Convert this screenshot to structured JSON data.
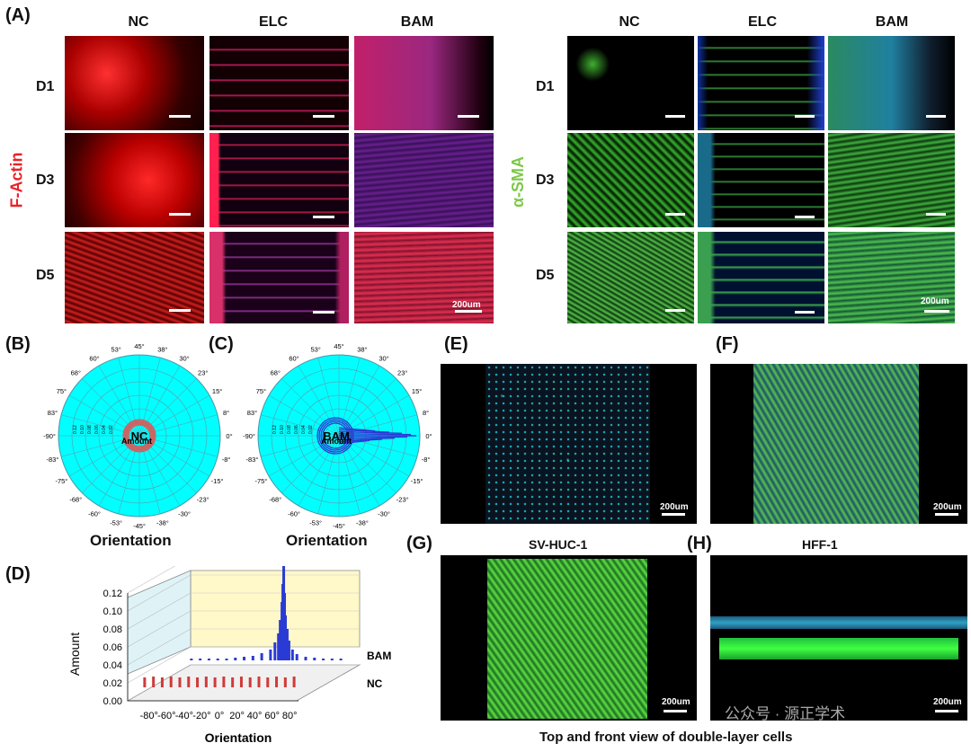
{
  "figure_panels": {
    "a": "(A)",
    "b": "(B)",
    "c": "(C)",
    "d": "(D)",
    "e": "(E)",
    "f": "(F)",
    "g": "(G)",
    "h": "(H)"
  },
  "panel_a": {
    "columns": [
      "NC",
      "ELC",
      "BAM"
    ],
    "rows": [
      "D1",
      "D3",
      "D5"
    ],
    "left_stain": "F-Actin",
    "right_stain": "α-SMA",
    "scale_label": "200um",
    "colors": {
      "f_actin": "#e8232a",
      "sma": "#7ec84a",
      "nucleus": "#2b3cd0"
    }
  },
  "polar_b": {
    "center_label": "NC",
    "amount_label": "Amount",
    "caption": "Orientation",
    "radial_ticks": [
      "0.12",
      "0.10",
      "0.08",
      "0.06",
      "0.04",
      "0.02"
    ],
    "angle_labels": [
      "45°",
      "38°",
      "30°",
      "23°",
      "15°",
      "8°",
      "0°",
      "-8°",
      "-15°",
      "-23°",
      "-30°",
      "-38°",
      "-45°",
      "-53°",
      "-60°",
      "-68°",
      "-75°",
      "-83°",
      "-90°",
      "83°",
      "75°",
      "68°",
      "60°",
      "53°"
    ],
    "colors": {
      "fill": "#00ffff",
      "data": "#d06060"
    }
  },
  "polar_c": {
    "center_label": "BAM",
    "amount_label": "Amount",
    "caption": "Orientation",
    "radial_ticks": [
      "0.12",
      "0.10",
      "0.08",
      "0.06",
      "0.04",
      "0.02"
    ],
    "angle_labels": [
      "45°",
      "38°",
      "30°",
      "23°",
      "15°",
      "8°",
      "0°",
      "-8°",
      "-15°",
      "-23°",
      "-30°",
      "-38°",
      "-45°",
      "-53°",
      "-60°",
      "-68°",
      "-75°",
      "-83°",
      "-90°",
      "83°",
      "75°",
      "68°",
      "60°",
      "53°"
    ],
    "colors": {
      "fill": "#00ffff",
      "data": "#2a3bd4"
    }
  },
  "panel_e": {
    "scale_label": "200um"
  },
  "panel_f": {
    "scale_label": "200um"
  },
  "panel_g": {
    "title": "SV-HUC-1",
    "scale_label": "200um"
  },
  "panel_h": {
    "title": "HFF-1",
    "scale_label": "200um"
  },
  "bottom_caption": "Top and front view of double-layer cells",
  "watermark": "公众号 · 源正学术",
  "chart_data": {
    "type": "bar",
    "xlabel": "Orientation",
    "ylabel": "Amount",
    "xlim": [
      -90,
      90
    ],
    "ylim": [
      0,
      0.12
    ],
    "x_ticks": [
      "-80°",
      "-60°",
      "-40°",
      "-20°",
      "0°",
      "20°",
      "40°",
      "60°",
      "80°"
    ],
    "y_ticks": [
      "0.00",
      "0.02",
      "0.04",
      "0.06",
      "0.08",
      "0.10",
      "0.12"
    ],
    "series": [
      {
        "name": "BAM",
        "color": "#2a3bd4",
        "x": [
          -85,
          -75,
          -65,
          -55,
          -45,
          -35,
          -25,
          -15,
          -5,
          5,
          10,
          14,
          16,
          18,
          19,
          20,
          21,
          22,
          24,
          26,
          30,
          35,
          45,
          55,
          65,
          75,
          85
        ],
        "values": [
          0.002,
          0.002,
          0.002,
          0.002,
          0.002,
          0.003,
          0.004,
          0.005,
          0.008,
          0.012,
          0.02,
          0.03,
          0.045,
          0.065,
          0.085,
          0.11,
          0.075,
          0.05,
          0.035,
          0.022,
          0.012,
          0.007,
          0.004,
          0.003,
          0.002,
          0.002,
          0.002
        ]
      },
      {
        "name": "NC",
        "color": "#d03a3a",
        "x": [
          -85,
          -75,
          -65,
          -55,
          -45,
          -35,
          -25,
          -15,
          -5,
          5,
          15,
          25,
          35,
          45,
          55,
          65,
          75,
          85
        ],
        "values": [
          0.011,
          0.012,
          0.011,
          0.012,
          0.011,
          0.012,
          0.011,
          0.012,
          0.011,
          0.012,
          0.011,
          0.012,
          0.011,
          0.012,
          0.011,
          0.012,
          0.011,
          0.012
        ]
      }
    ],
    "grid": true
  }
}
